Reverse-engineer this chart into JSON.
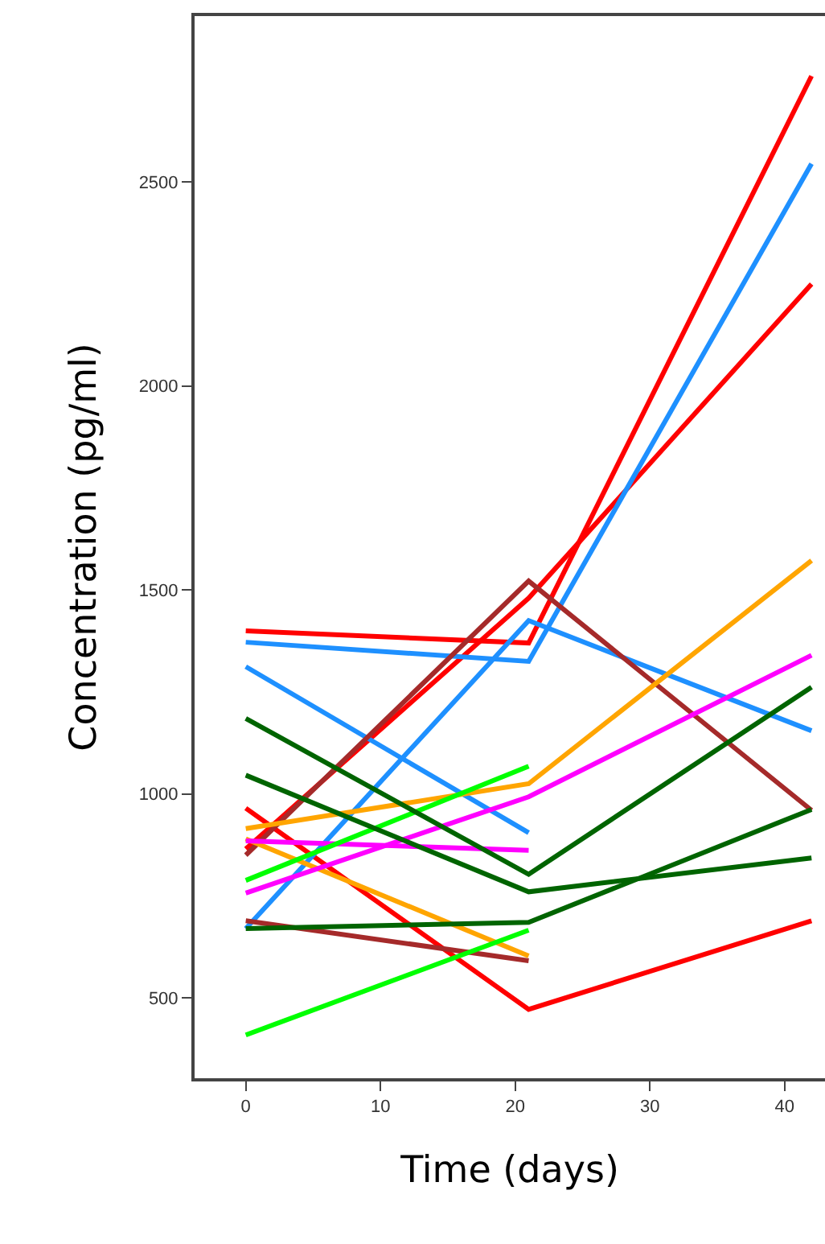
{
  "chart_data": {
    "type": "line",
    "xlabel": "Time (days)",
    "ylabel": "Concentration (pg/ml)",
    "x": [
      0,
      21,
      42
    ],
    "xlim": [
      -3.8,
      43
    ],
    "ylim": [
      303,
      2907
    ],
    "xticks": [
      0,
      10,
      20,
      30,
      40
    ],
    "yticks": [
      500,
      1000,
      1500,
      2000,
      2500
    ],
    "line_style": "solid",
    "series": [
      {
        "color": "#ff0000",
        "values": [
          1400,
          1370,
          2760
        ]
      },
      {
        "color": "#ff0000",
        "values": [
          865,
          1480,
          2250
        ]
      },
      {
        "color": "#ff0000",
        "values": [
          965,
          472,
          689
        ]
      },
      {
        "color": "#1e90ff",
        "values": [
          1372,
          1325,
          2545
        ]
      },
      {
        "color": "#1e90ff",
        "values": [
          670,
          1425,
          1155
        ]
      },
      {
        "color": "#1e90ff",
        "values": [
          1312,
          905,
          null
        ]
      },
      {
        "color": "#a52a2a",
        "values": [
          850,
          1522,
          960
        ]
      },
      {
        "color": "#a52a2a",
        "values": [
          689,
          591,
          null
        ]
      },
      {
        "color": "#ffa500",
        "values": [
          915,
          1025,
          1572
        ]
      },
      {
        "color": "#ffa500",
        "values": [
          890,
          603,
          null
        ]
      },
      {
        "color": "#ff00ff",
        "values": [
          885,
          862,
          null
        ]
      },
      {
        "color": "#ff00ff",
        "values": [
          757,
          993,
          1340
        ]
      },
      {
        "color": "#00ff00",
        "values": [
          788,
          1068,
          null
        ]
      },
      {
        "color": "#00ff00",
        "values": [
          409,
          666,
          null
        ]
      },
      {
        "color": "#006400",
        "values": [
          1185,
          803,
          1262
        ]
      },
      {
        "color": "#006400",
        "values": [
          1046,
          760,
          843
        ]
      },
      {
        "color": "#006400",
        "values": [
          670,
          685,
          962
        ]
      }
    ]
  }
}
